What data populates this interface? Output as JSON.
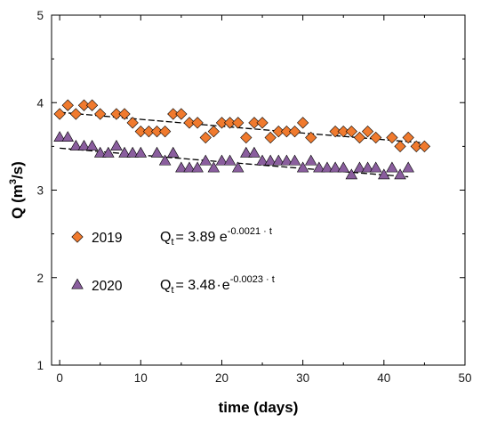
{
  "chart_data": {
    "type": "scatter",
    "title": "",
    "xlabel": "time (days)",
    "ylabel": {
      "base": "Q (m",
      "sup": "3",
      "rest": "/s)"
    },
    "xlim": [
      -1,
      50
    ],
    "ylim": [
      1,
      5
    ],
    "xticks": [
      0,
      10,
      20,
      30,
      40,
      50
    ],
    "yticks": [
      1,
      2,
      3,
      4,
      5
    ],
    "grid": false,
    "legend_position": "center-left",
    "series": [
      {
        "name": "2019",
        "marker": "diamond",
        "color": "#f07a2e",
        "x": [
          0,
          1,
          2,
          3,
          4,
          5,
          7,
          8,
          9,
          10,
          11,
          12,
          13,
          14,
          15,
          16,
          17,
          18,
          19,
          20,
          21,
          22,
          23,
          24,
          25,
          26,
          27,
          28,
          29,
          30,
          31,
          34,
          35,
          36,
          37,
          38,
          39,
          41,
          42,
          43,
          44,
          45
        ],
        "y": [
          3.87,
          3.97,
          3.87,
          3.97,
          3.97,
          3.87,
          3.87,
          3.87,
          3.77,
          3.67,
          3.67,
          3.67,
          3.67,
          3.87,
          3.87,
          3.77,
          3.77,
          3.6,
          3.67,
          3.77,
          3.77,
          3.77,
          3.6,
          3.77,
          3.77,
          3.6,
          3.67,
          3.67,
          3.67,
          3.77,
          3.6,
          3.67,
          3.67,
          3.67,
          3.6,
          3.67,
          3.6,
          3.6,
          3.5,
          3.6,
          3.5,
          3.5
        ],
        "fit": {
          "a": 3.89,
          "b": -0.0021,
          "x_range": [
            0,
            45
          ]
        },
        "equation": {
          "lhs": "Q",
          "lhs_sub": "t",
          "coef": "= 3.89 e",
          "exp": "-0.0021 · t"
        }
      },
      {
        "name": "2020",
        "marker": "triangle",
        "color": "#8a5e9e",
        "x": [
          0,
          1,
          2,
          3,
          4,
          5,
          6,
          7,
          8,
          9,
          10,
          12,
          13,
          14,
          15,
          16,
          17,
          18,
          19,
          20,
          21,
          22,
          23,
          24,
          25,
          26,
          27,
          28,
          29,
          30,
          31,
          32,
          33,
          34,
          35,
          36,
          37,
          38,
          39,
          40,
          41,
          42,
          43
        ],
        "y": [
          3.6,
          3.6,
          3.5,
          3.5,
          3.5,
          3.42,
          3.42,
          3.5,
          3.42,
          3.42,
          3.42,
          3.42,
          3.33,
          3.42,
          3.25,
          3.25,
          3.25,
          3.33,
          3.25,
          3.33,
          3.33,
          3.25,
          3.42,
          3.42,
          3.33,
          3.33,
          3.33,
          3.33,
          3.33,
          3.25,
          3.33,
          3.25,
          3.25,
          3.25,
          3.25,
          3.17,
          3.25,
          3.25,
          3.25,
          3.17,
          3.25,
          3.17,
          3.25
        ],
        "fit": {
          "a": 3.48,
          "b": -0.0023,
          "x_range": [
            0,
            43
          ]
        },
        "equation": {
          "lhs": "Q",
          "lhs_sub": "t",
          "coef": "= 3.48",
          "exp": "-0.0023 · t"
        }
      }
    ]
  }
}
